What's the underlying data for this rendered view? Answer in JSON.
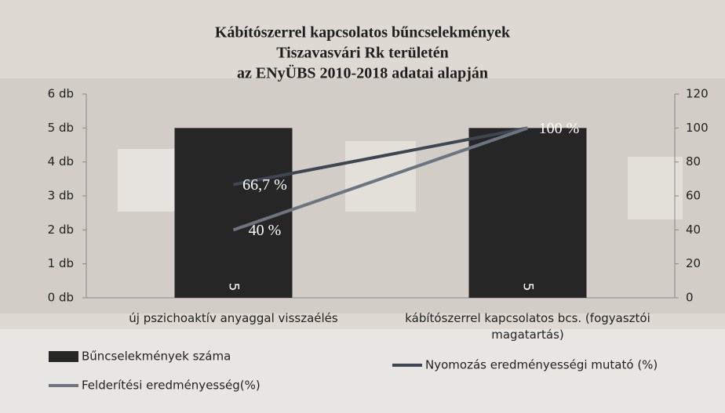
{
  "chart_data": {
    "type": "bar",
    "title": [
      "Kábítószerrel kapcsolatos bűncselekmények",
      "Tiszavasvári Rk területén",
      "az ENyÜBS 2010-2018 adatai alapján"
    ],
    "categories": [
      "új pszichoaktív anyaggal visszaélés",
      "kábítószerrel kapcsolatos bcs. (fogyasztói magatartás)"
    ],
    "series": [
      {
        "name": "Bűncselekmények száma",
        "type": "bar",
        "color": "#262626",
        "values": [
          5,
          5
        ]
      },
      {
        "name": "Nyomozás eredményességi mutató (%)",
        "type": "line",
        "axis": "y2",
        "color": "#3e4652",
        "values": [
          66.7,
          100
        ],
        "value_labels": [
          "66,7 %",
          "100 %"
        ]
      },
      {
        "name": "Felderítési eredményesség(%)",
        "type": "line",
        "axis": "y2",
        "color": "#6b7580",
        "values": [
          40,
          100
        ],
        "value_labels": [
          "40 %",
          null
        ]
      }
    ],
    "ylim": [
      0,
      6
    ],
    "yticks": [
      {
        "value": 0,
        "label": "0 db"
      },
      {
        "value": 1,
        "label": "1 db"
      },
      {
        "value": 2,
        "label": "2 db"
      },
      {
        "value": 3,
        "label": "3 db"
      },
      {
        "value": 4,
        "label": "4 db"
      },
      {
        "value": 5,
        "label": "5 db"
      },
      {
        "value": 6,
        "label": "6 db"
      }
    ],
    "y2lim": [
      0,
      120
    ],
    "y2ticks": [
      0,
      20,
      40,
      60,
      80,
      100,
      120
    ],
    "legend": "bottom"
  }
}
